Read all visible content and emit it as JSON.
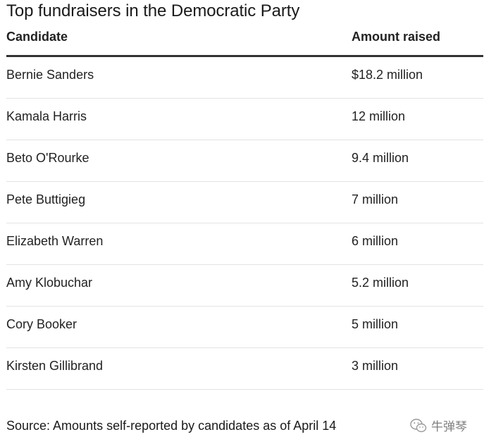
{
  "chart_data": {
    "type": "table",
    "title": "Top fundraisers in the Democratic Party",
    "columns": [
      "Candidate",
      "Amount raised"
    ],
    "rows": [
      {
        "candidate": "Bernie Sanders",
        "amount": "$18.2 million",
        "value": 18.2
      },
      {
        "candidate": "Kamala Harris",
        "amount": "12 million",
        "value": 12
      },
      {
        "candidate": "Beto O'Rourke",
        "amount": "9.4 million",
        "value": 9.4
      },
      {
        "candidate": "Pete Buttigieg",
        "amount": "7 million",
        "value": 7
      },
      {
        "candidate": "Elizabeth Warren",
        "amount": "6 million",
        "value": 6
      },
      {
        "candidate": "Amy Klobuchar",
        "amount": "5.2 million",
        "value": 5.2
      },
      {
        "candidate": "Cory Booker",
        "amount": "5 million",
        "value": 5
      },
      {
        "candidate": "Kirsten Gillibrand",
        "amount": "3 million",
        "value": 3
      }
    ],
    "unit": "million USD",
    "source": "Source: Amounts self-reported by candidates as of April 14"
  },
  "watermark": {
    "text": "牛弹琴",
    "icon": "wechat-logo-icon"
  }
}
